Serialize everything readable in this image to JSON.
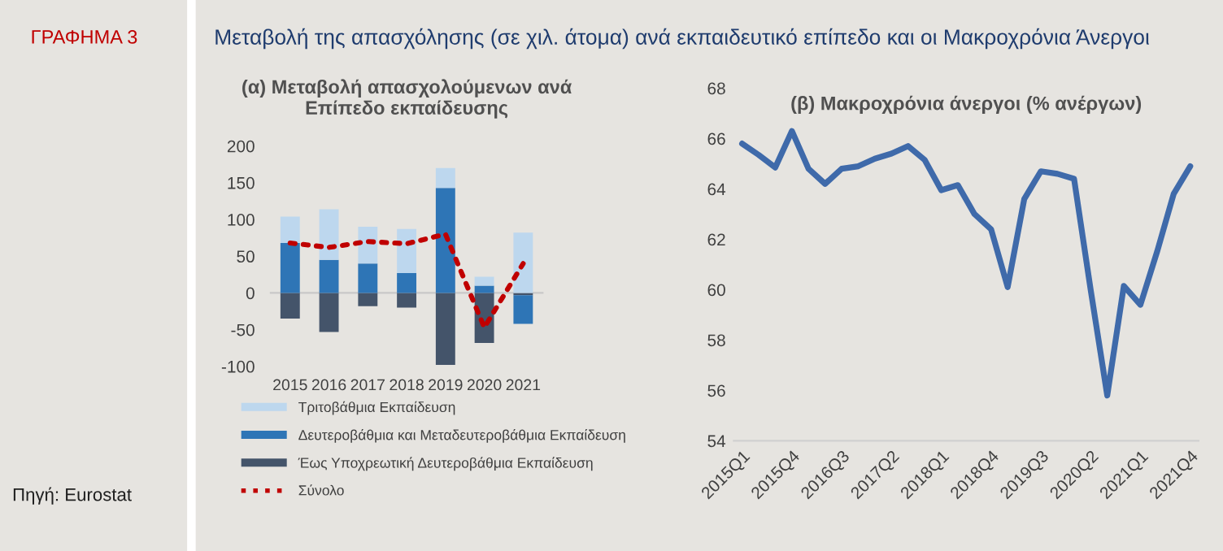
{
  "chart_data": [
    {
      "type": "bar",
      "title": "(α) Μεταβολή απασχολούμενων ανά\nΕπίπεδο εκπαίδευσης",
      "annotations": [
        "ΓΡΑΦΗΜΑ 3",
        "Μεταβολή της απασχόλησης (σε χιλ. άτομα) ανά εκπαιδευτικό επίπεδο και οι Μακροχρόνια Άνεργοι",
        "Πηγή: Eurostat"
      ],
      "categories": [
        "2015",
        "2016",
        "2017",
        "2018",
        "2019",
        "2020",
        "2021"
      ],
      "stacked": true,
      "series": [
        {
          "name": "Έως Υποχρεωτική Δευτεροβάθμια Εκπαίδευση",
          "color": "#44546a",
          "values": [
            -35,
            -53,
            -18,
            -20,
            -98,
            -68,
            -3
          ]
        },
        {
          "name": "Δευτεροβάθμια και Μεταδευτεροβάθμια Εκπαίδευση",
          "color": "#2e75b6",
          "values": [
            68,
            45,
            40,
            27,
            143,
            10,
            -39
          ]
        },
        {
          "name": "Τριτοβάθμια Εκπαίδευση",
          "color": "#bdd7ee",
          "values": [
            36,
            69,
            50,
            60,
            27,
            12,
            82
          ]
        },
        {
          "name": "Σύνολο",
          "type": "line",
          "color": "#c00000",
          "line_style": "dotted",
          "values": [
            68,
            62,
            70,
            67,
            80,
            -47,
            40
          ]
        }
      ],
      "ylim": [
        -100,
        200
      ],
      "yticks": [
        -100,
        -50,
        0,
        50,
        100,
        150,
        200
      ],
      "legend": "bottom"
    },
    {
      "type": "line",
      "title": "(β) Μακροχρόνια άνεργοι (% ανέργων)",
      "categories": [
        "2015Q1",
        null,
        null,
        "2015Q4",
        null,
        null,
        "2016Q3",
        null,
        null,
        "2017Q2",
        null,
        null,
        "2018Q1",
        null,
        null,
        "2018Q4",
        null,
        null,
        "2019Q3",
        null,
        null,
        "2020Q2",
        null,
        null,
        "2021Q1",
        null,
        null,
        "2021Q4"
      ],
      "series": [
        {
          "color": "#3f6aaa",
          "values": [
            65.8,
            65.35,
            64.85,
            66.3,
            64.8,
            64.2,
            64.8,
            64.9,
            65.2,
            65.4,
            65.7,
            65.15,
            63.95,
            64.15,
            63.0,
            62.4,
            60.1,
            63.6,
            64.7,
            64.6,
            64.4,
            60.0,
            55.8,
            60.15,
            59.4,
            61.5,
            63.8,
            64.9
          ]
        }
      ],
      "ylim": [
        54,
        68
      ],
      "yticks": [
        54,
        56,
        58,
        60,
        62,
        64,
        66,
        68
      ],
      "grid": false,
      "legend": false
    }
  ]
}
